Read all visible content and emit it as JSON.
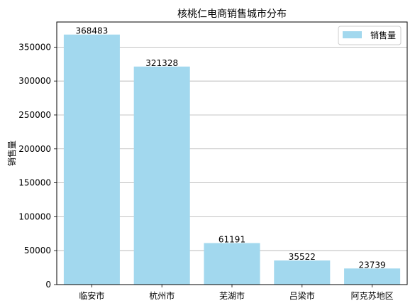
{
  "chart_data": {
    "type": "bar",
    "title": "核桃仁电商销售城市分布",
    "xlabel": "",
    "ylabel": "销售量",
    "categories": [
      "临安市",
      "杭州市",
      "芜湖市",
      "吕梁市",
      "阿克苏地区"
    ],
    "series": [
      {
        "name": "销售量",
        "values": [
          368483,
          321328,
          61191,
          35522,
          23739
        ],
        "color": "#a2d8ee"
      }
    ],
    "ylim": [
      0,
      387000
    ],
    "yticks": [
      "0",
      "50000",
      "100000",
      "150000",
      "200000",
      "250000",
      "300000",
      "350000"
    ],
    "ytick_values": [
      0,
      50000,
      100000,
      150000,
      200000,
      250000,
      300000,
      350000
    ],
    "grid": "y-axis",
    "legend": "top-right",
    "data_labels": [
      "368483",
      "321328",
      "61191",
      "35522",
      "23739"
    ]
  }
}
